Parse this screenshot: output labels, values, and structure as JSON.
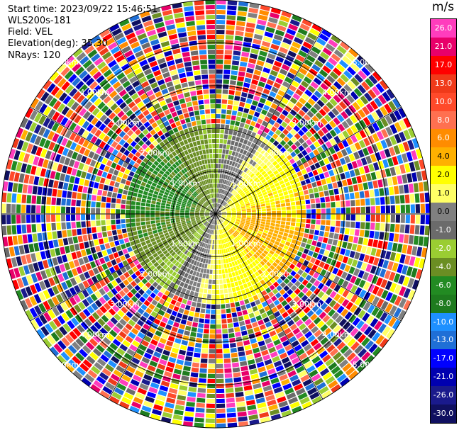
{
  "info": {
    "start_time": "Start time: 2023/09/22 15:46:51",
    "instrument": "WLS200s-181",
    "field": "Field: VEL",
    "elevation": "Elevation(deg): 35.30",
    "nrays": "NRays: 120"
  },
  "colorbar": {
    "unit": "m/s",
    "ticks": [
      "26.0",
      "21.0",
      "17.0",
      "13.0",
      "10.0",
      "8.0",
      "6.0",
      "4.0",
      "2.0",
      "1.0",
      "0.0",
      "-1.0",
      "-2.0",
      "-4.0",
      "-6.0",
      "-8.0",
      "-10.0",
      "-13.0",
      "-17.0",
      "-21.0",
      "-26.0",
      "-30.0"
    ],
    "colors": [
      "#ff3dbd",
      "#e8006a",
      "#ff0000",
      "#f03a1a",
      "#ff4a2a",
      "#ff7050",
      "#ff8c00",
      "#ffb000",
      "#ffff00",
      "#ffff66",
      "#808080",
      "#6b6b6b",
      "#9acd32",
      "#6b8e23",
      "#228b22",
      "#1e7b1e",
      "#1e90ff",
      "#1f6fd6",
      "#0000ff",
      "#0000b0",
      "#1a1a8c",
      "#101060"
    ]
  },
  "chart_data": {
    "type": "heatmap",
    "title": "",
    "field": "VEL",
    "units": "m/s",
    "projection": "polar PPI",
    "elevation_deg": 35.3,
    "n_rays": 120,
    "range_rings_km": [
      1.0,
      2.0,
      3.0,
      4.0,
      5.0
    ],
    "range_ring_labels": [
      "1.00km",
      "2.00km",
      "3.00km",
      "4.00km",
      "5.00km"
    ],
    "spokes_deg": [
      0,
      30,
      60,
      90,
      120,
      150,
      180,
      210,
      240,
      270,
      300,
      330
    ],
    "max_range_km": 5.0,
    "colorbar_range": [
      -30.0,
      26.0
    ],
    "valid_data_extent_km": 2.1,
    "description_of_pattern": "Near field (< ~2 km) shows coherent radial velocities: positive (yellow) to the east/south, negative (green) to the west, gray near zero between; beyond ~2 km the field is noise (random colors)."
  }
}
